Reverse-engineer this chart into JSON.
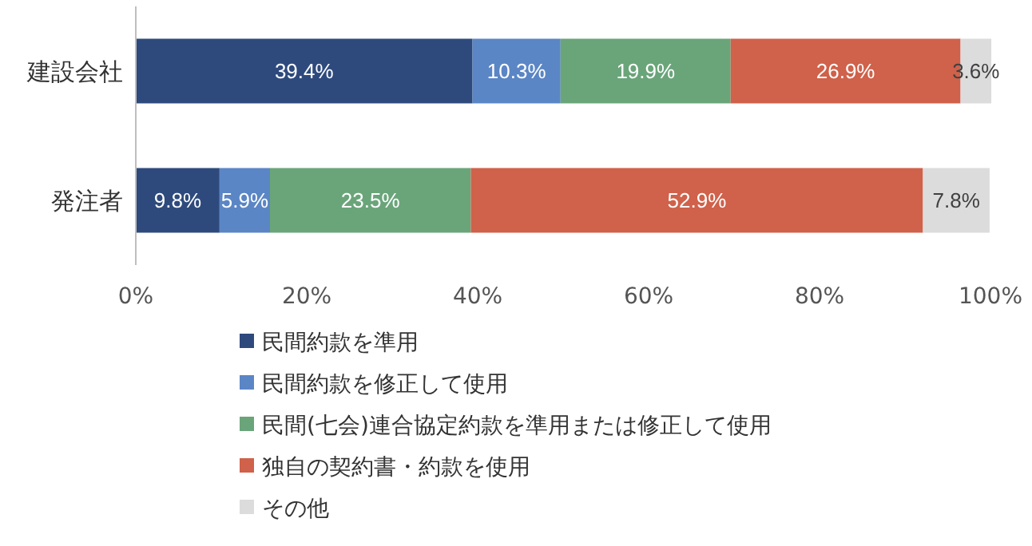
{
  "chart_data": {
    "type": "bar",
    "orientation": "horizontal",
    "stacked": true,
    "categories": [
      "建設会社",
      "発注者"
    ],
    "xlim": [
      0,
      100
    ],
    "xticks": [
      {
        "value": 0,
        "label": "0%"
      },
      {
        "value": 20,
        "label": "20%"
      },
      {
        "value": 40,
        "label": "40%"
      },
      {
        "value": 60,
        "label": "60%"
      },
      {
        "value": 80,
        "label": "80%"
      },
      {
        "value": 100,
        "label": "100%"
      }
    ],
    "grid": false,
    "legend": "bottom",
    "series": [
      {
        "name": "民間約款を準用",
        "color": "#2e4a7d",
        "values": [
          39.4,
          9.8
        ],
        "value_labels": [
          "39.4%",
          "9.8%"
        ]
      },
      {
        "name": "民間約款を修正して使用",
        "color": "#5b86c5",
        "values": [
          10.3,
          5.9
        ],
        "value_labels": [
          "10.3%",
          "5.9%"
        ]
      },
      {
        "name": "民間(七会)連合協定約款を準用または修正して使用",
        "color": "#6aa57a",
        "values": [
          19.9,
          23.5
        ],
        "value_labels": [
          "19.9%",
          "23.5%"
        ]
      },
      {
        "name": "独自の契約書・約款を使用",
        "color": "#d0614a",
        "values": [
          26.9,
          52.9
        ],
        "value_labels": [
          "26.9%",
          "52.9%"
        ]
      },
      {
        "name": "その他",
        "color": "#dcdcdc",
        "values": [
          3.6,
          7.8
        ],
        "value_labels": [
          "3.6%",
          "7.8%"
        ]
      }
    ]
  }
}
